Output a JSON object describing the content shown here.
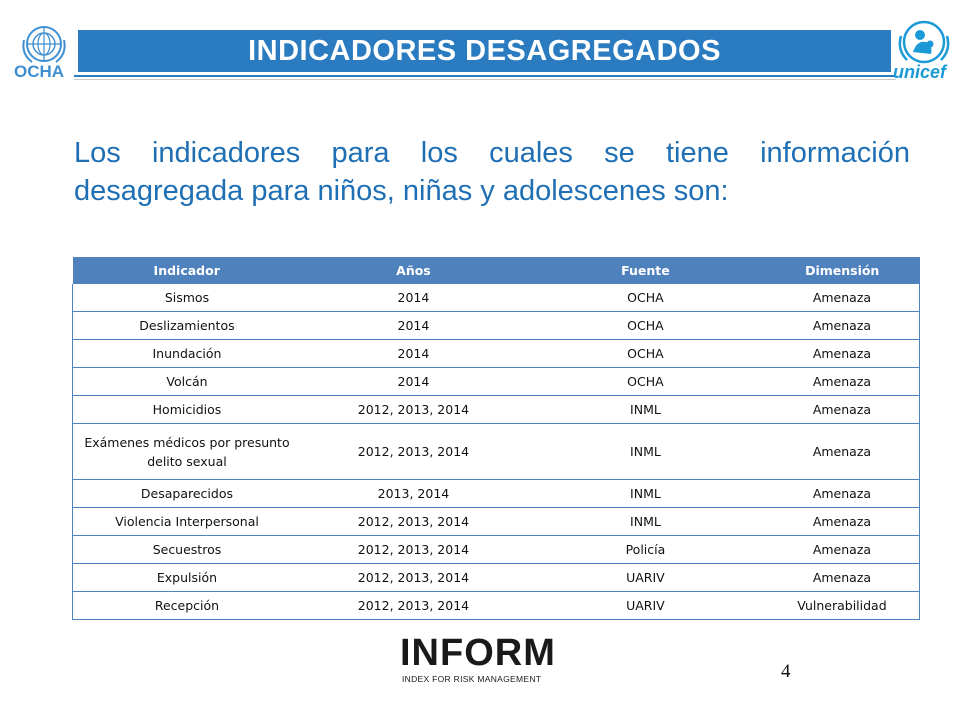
{
  "header": {
    "title": "INDICADORES DESAGREGADOS",
    "left_logo_text": "OCHA",
    "right_logo_text": "unicef",
    "accent_color": "#2a7bbf"
  },
  "intro": {
    "text": "Los indicadores para los cuales se tiene información desagregada para niños, niñas y adolescenes son:"
  },
  "table": {
    "header_color": "#4f81bd",
    "columns": [
      "Indicador",
      "Años",
      "Fuente",
      "Dimensión"
    ],
    "rows": [
      [
        "Sismos",
        "2014",
        "OCHA",
        "Amenaza"
      ],
      [
        "Deslizamientos",
        "2014",
        "OCHA",
        "Amenaza"
      ],
      [
        "Inundación",
        "2014",
        "OCHA",
        "Amenaza"
      ],
      [
        "Volcán",
        "2014",
        "OCHA",
        "Amenaza"
      ],
      [
        "Homicidios",
        "2012, 2013, 2014",
        "INML",
        "Amenaza"
      ],
      [
        "Exámenes médicos por presunto delito sexual",
        "2012, 2013, 2014",
        "INML",
        "Amenaza"
      ],
      [
        "Desaparecidos",
        "2013, 2014",
        "INML",
        "Amenaza"
      ],
      [
        "Violencia Interpersonal",
        "2012, 2013, 2014",
        "INML",
        "Amenaza"
      ],
      [
        "Secuestros",
        "2012, 2013, 2014",
        "Policía",
        "Amenaza"
      ],
      [
        "Expulsión",
        "2012, 2013, 2014",
        "UARIV",
        "Amenaza"
      ],
      [
        "Recepción",
        "2012, 2013, 2014",
        "UARIV",
        "Vulnerabilidad"
      ]
    ]
  },
  "footer": {
    "logo_title": "INFORM",
    "logo_subtitle": "INDEX FOR RISK MANAGEMENT",
    "page_number": "4"
  }
}
